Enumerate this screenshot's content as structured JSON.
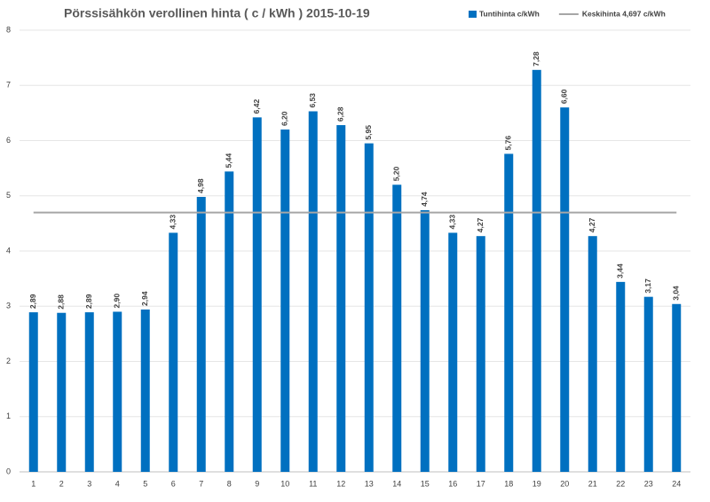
{
  "chart_data": {
    "type": "bar",
    "title": "Pörssisähkön verollinen hinta ( c / kWh ) 2015-10-19",
    "categories": [
      1,
      2,
      3,
      4,
      5,
      6,
      7,
      8,
      9,
      10,
      11,
      12,
      13,
      14,
      15,
      16,
      17,
      18,
      19,
      20,
      21,
      22,
      23,
      24
    ],
    "series": [
      {
        "name": "Tuntihinta c/kWh",
        "color": "#0070c0",
        "type": "bar",
        "values": [
          2.89,
          2.88,
          2.89,
          2.9,
          2.94,
          4.33,
          4.98,
          5.44,
          6.42,
          6.2,
          6.53,
          6.28,
          5.95,
          5.2,
          4.74,
          4.33,
          4.27,
          5.76,
          7.28,
          6.6,
          4.27,
          3.44,
          3.17,
          3.04
        ],
        "value_labels": [
          "2,89",
          "2,88",
          "2,89",
          "2,90",
          "2,94",
          "4,33",
          "4,98",
          "5,44",
          "6,42",
          "6,20",
          "6,53",
          "6,28",
          "5,95",
          "5,20",
          "4,74",
          "4,33",
          "4,27",
          "5,76",
          "7,28",
          "6,60",
          "4,27",
          "3,44",
          "3,17",
          "3,04"
        ]
      },
      {
        "name": "Keskihinta 4,697 c/kWh",
        "color": "#a6a6a6",
        "type": "line",
        "values": [
          4.697,
          4.697,
          4.697,
          4.697,
          4.697,
          4.697,
          4.697,
          4.697,
          4.697,
          4.697,
          4.697,
          4.697,
          4.697,
          4.697,
          4.697,
          4.697,
          4.697,
          4.697,
          4.697,
          4.697,
          4.697,
          4.697,
          4.697,
          4.697
        ]
      }
    ],
    "ylim": [
      0,
      8
    ],
    "yticks": [
      0,
      1,
      2,
      3,
      4,
      5,
      6,
      7,
      8
    ],
    "grid": true,
    "legend": "top-right"
  }
}
